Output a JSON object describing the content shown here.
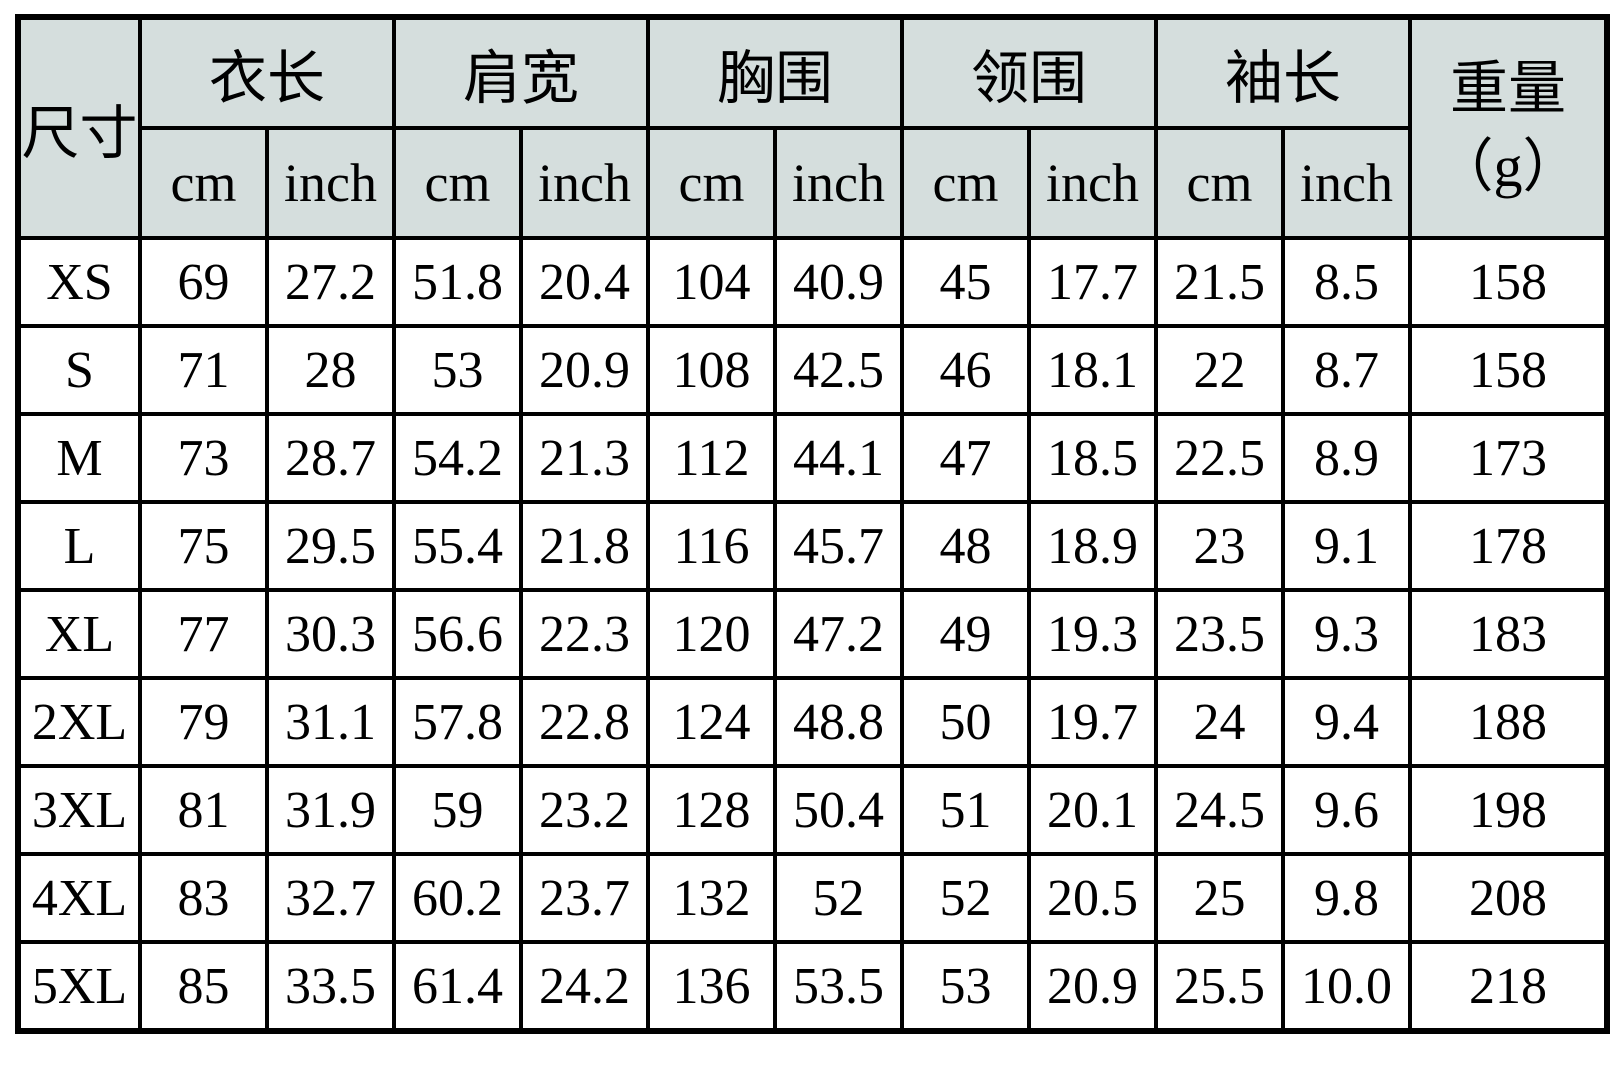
{
  "chart_data": {
    "type": "table",
    "corner_label": "尺寸",
    "measure_groups": [
      "衣长",
      "肩宽",
      "胸围",
      "领围",
      "袖长"
    ],
    "unit_labels": [
      "cm",
      "inch"
    ],
    "weight_label": "重量",
    "weight_unit_label": "（g）",
    "columns": [
      "尺寸",
      "衣长 cm",
      "衣长 inch",
      "肩宽 cm",
      "肩宽 inch",
      "胸围 cm",
      "胸围 inch",
      "领围 cm",
      "领围 inch",
      "袖长 cm",
      "袖长 inch",
      "重量（g）"
    ],
    "rows": [
      {
        "size": "XS",
        "values": [
          "69",
          "27.2",
          "51.8",
          "20.4",
          "104",
          "40.9",
          "45",
          "17.7",
          "21.5",
          "8.5",
          "158"
        ]
      },
      {
        "size": "S",
        "values": [
          "71",
          "28",
          "53",
          "20.9",
          "108",
          "42.5",
          "46",
          "18.1",
          "22",
          "8.7",
          "158"
        ]
      },
      {
        "size": "M",
        "values": [
          "73",
          "28.7",
          "54.2",
          "21.3",
          "112",
          "44.1",
          "47",
          "18.5",
          "22.5",
          "8.9",
          "173"
        ]
      },
      {
        "size": "L",
        "values": [
          "75",
          "29.5",
          "55.4",
          "21.8",
          "116",
          "45.7",
          "48",
          "18.9",
          "23",
          "9.1",
          "178"
        ]
      },
      {
        "size": "XL",
        "values": [
          "77",
          "30.3",
          "56.6",
          "22.3",
          "120",
          "47.2",
          "49",
          "19.3",
          "23.5",
          "9.3",
          "183"
        ]
      },
      {
        "size": "2XL",
        "values": [
          "79",
          "31.1",
          "57.8",
          "22.8",
          "124",
          "48.8",
          "50",
          "19.7",
          "24",
          "9.4",
          "188"
        ]
      },
      {
        "size": "3XL",
        "values": [
          "81",
          "31.9",
          "59",
          "23.2",
          "128",
          "50.4",
          "51",
          "20.1",
          "24.5",
          "9.6",
          "198"
        ]
      },
      {
        "size": "4XL",
        "values": [
          "83",
          "32.7",
          "60.2",
          "23.7",
          "132",
          "52",
          "52",
          "20.5",
          "25",
          "9.8",
          "208"
        ]
      },
      {
        "size": "5XL",
        "values": [
          "85",
          "33.5",
          "61.4",
          "24.2",
          "136",
          "53.5",
          "53",
          "20.9",
          "25.5",
          "10.0",
          "218"
        ]
      }
    ],
    "layout": {
      "grid": "on",
      "header_rows": 2,
      "data_rows": 9
    }
  },
  "colors": {
    "header_bg": "#d5dedd",
    "border": "#000000",
    "background": "#ffffff"
  }
}
